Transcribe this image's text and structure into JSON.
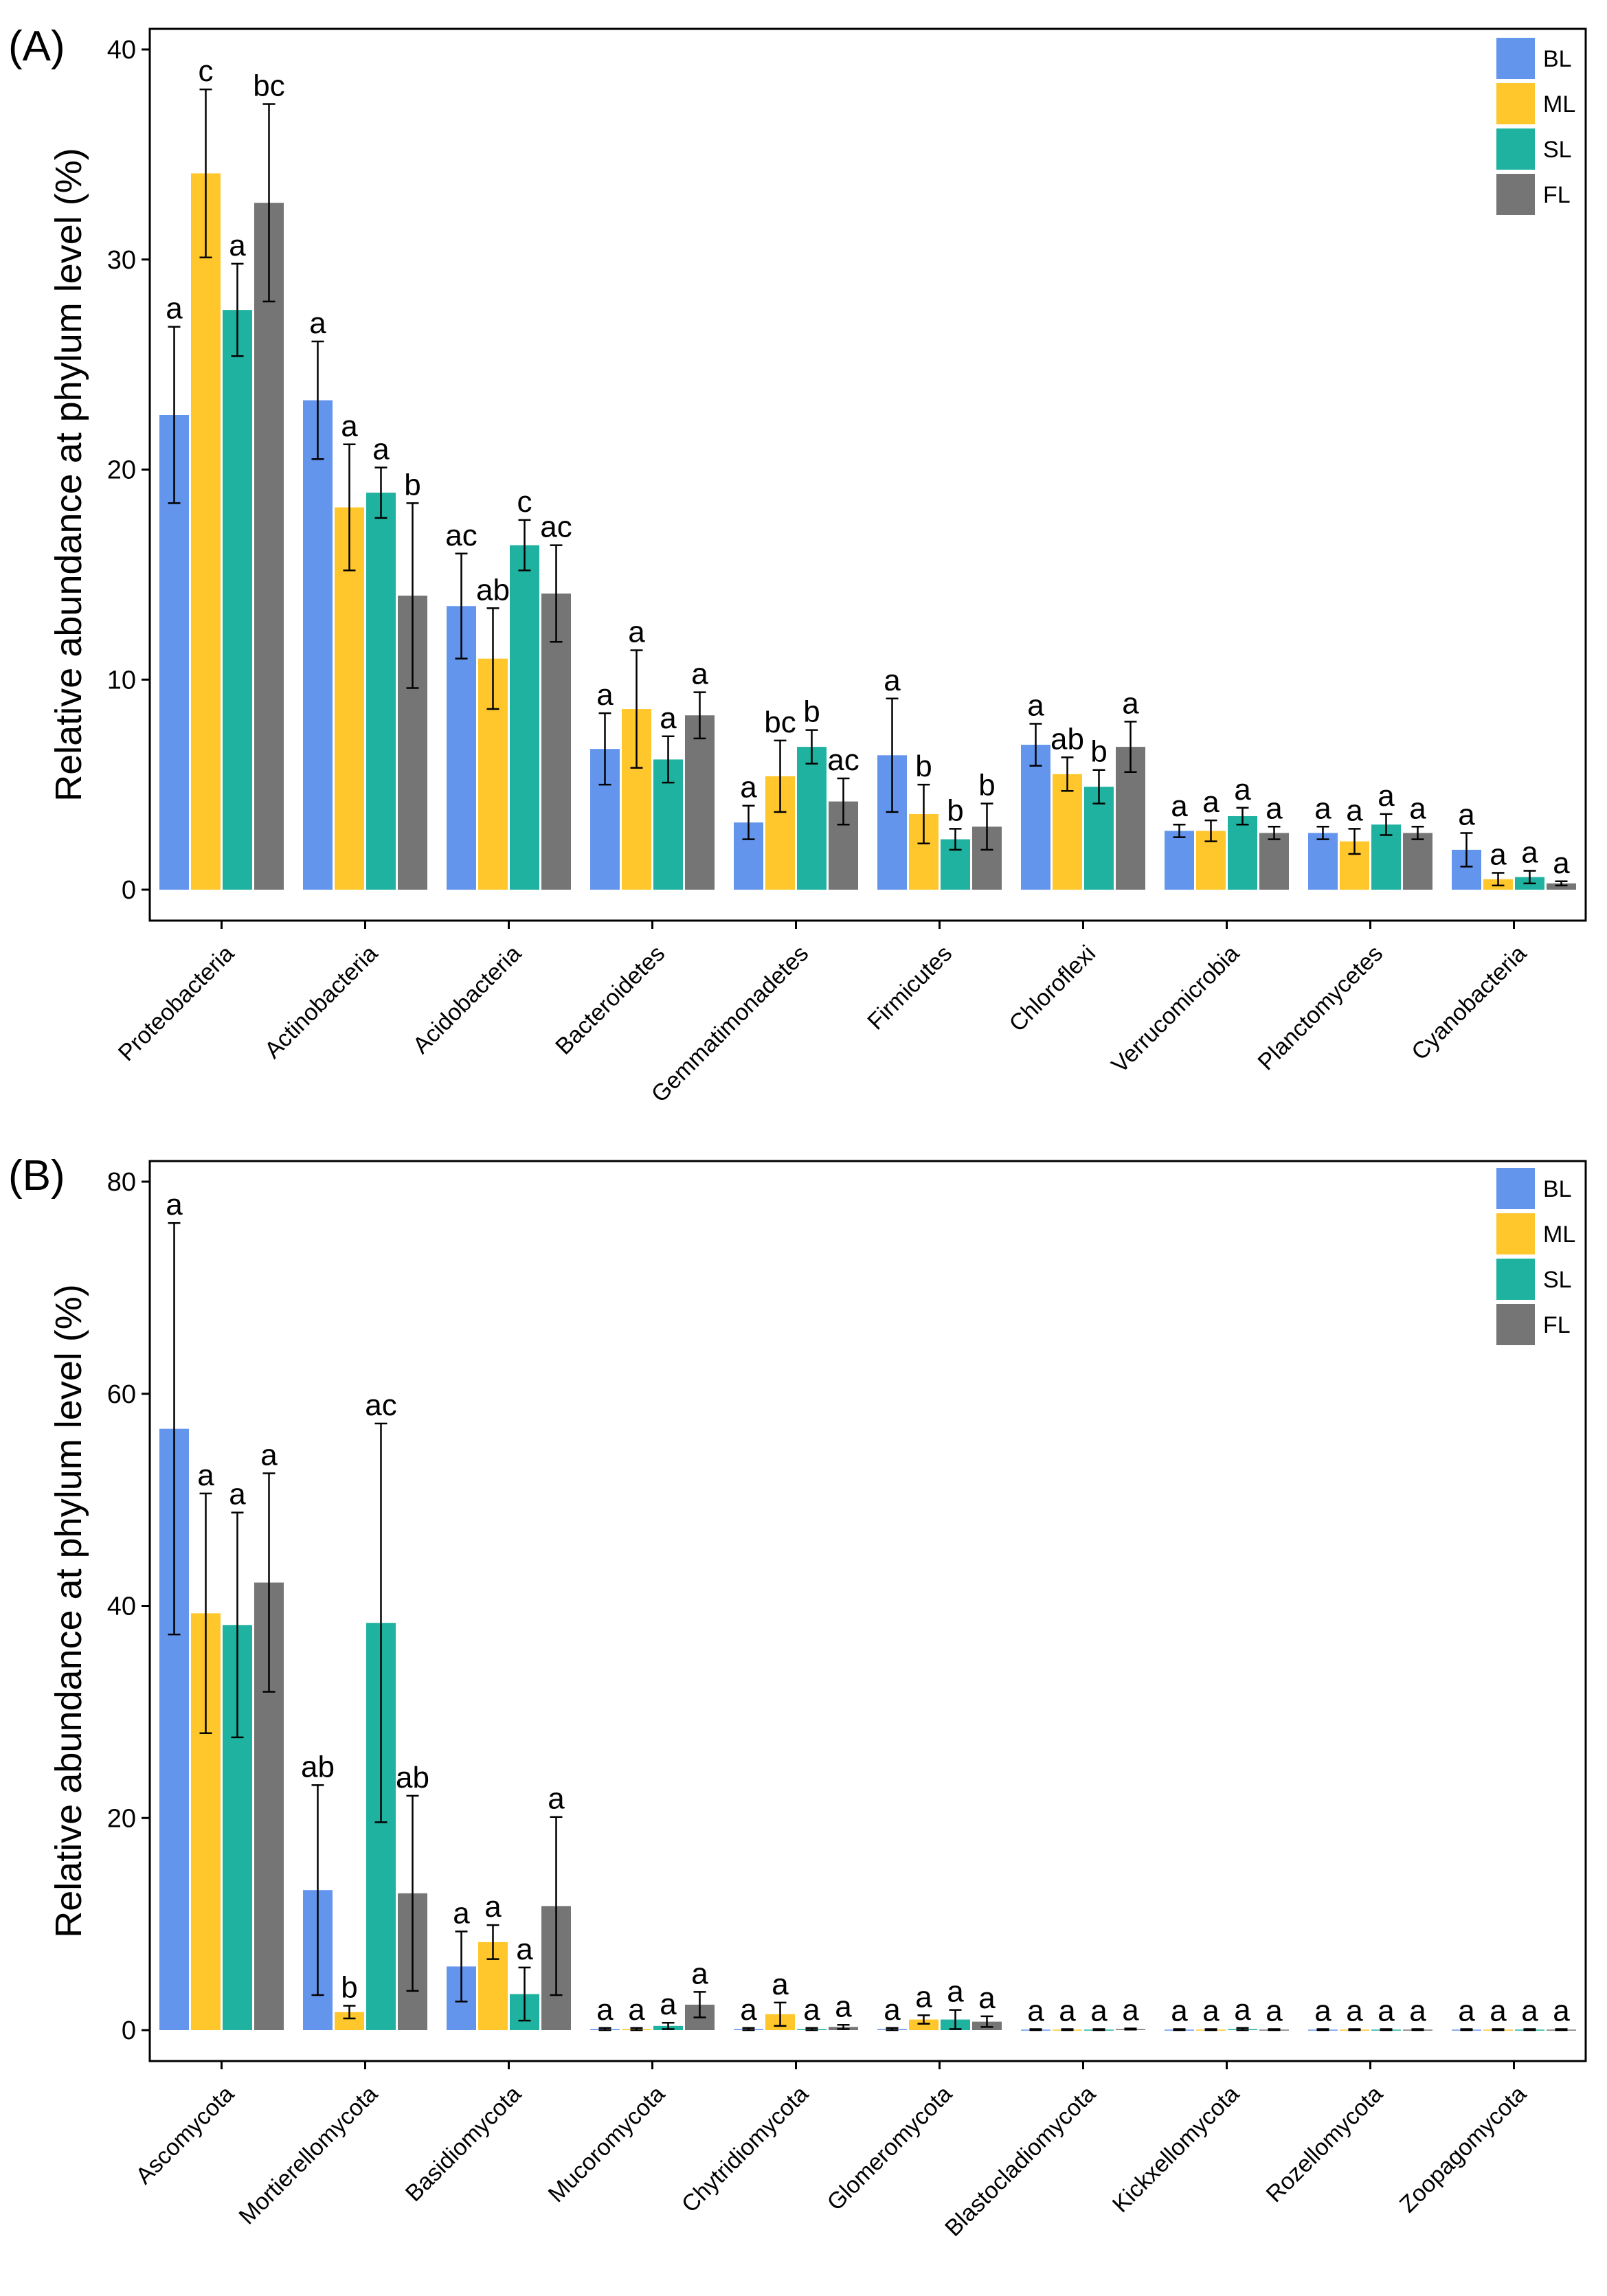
{
  "colors": {
    "BL": "#6495ED",
    "ML": "#FFC72C",
    "SL": "#20B2A0",
    "FL": "#757575"
  },
  "chart_data": [
    {
      "type": "bar",
      "panel_label": "(A)",
      "ylabel": "Relative abundance at phylum level (%)",
      "xlabel": "",
      "ylim": [
        0,
        40
      ],
      "yticks": [
        0,
        10,
        20,
        30,
        40
      ],
      "legend": [
        "BL",
        "ML",
        "SL",
        "FL"
      ],
      "legend_position": "top-right",
      "categories": [
        "Proteobacteria",
        "Actinobacteria",
        "Acidobacteria",
        "Bacteroidetes",
        "Gemmatimonadetes",
        "Firmicutes",
        "Chloroflexi",
        "Verrucomicrobia",
        "Planctomycetes",
        "Cyanobacteria"
      ],
      "series": [
        {
          "name": "BL",
          "values": [
            22.6,
            23.3,
            13.5,
            6.7,
            3.2,
            6.4,
            6.9,
            2.8,
            2.7,
            1.9
          ],
          "errors": [
            4.2,
            2.8,
            2.5,
            1.7,
            0.8,
            2.7,
            1.0,
            0.3,
            0.3,
            0.8
          ],
          "sig": [
            "a",
            "a",
            "ac",
            "a",
            "a",
            "a",
            "a",
            "a",
            "a",
            "a"
          ]
        },
        {
          "name": "ML",
          "values": [
            34.1,
            18.2,
            11.0,
            8.6,
            5.4,
            3.6,
            5.5,
            2.8,
            2.3,
            0.5
          ],
          "errors": [
            4.0,
            3.0,
            2.4,
            2.8,
            1.7,
            1.4,
            0.8,
            0.5,
            0.6,
            0.3
          ],
          "sig": [
            "c",
            "a",
            "ab",
            "a",
            "bc",
            "b",
            "ab",
            "a",
            "a",
            "a"
          ]
        },
        {
          "name": "SL",
          "values": [
            27.6,
            18.9,
            16.4,
            6.2,
            6.8,
            2.4,
            4.9,
            3.5,
            3.1,
            0.6
          ],
          "errors": [
            2.2,
            1.2,
            1.2,
            1.1,
            0.8,
            0.5,
            0.8,
            0.4,
            0.5,
            0.3
          ],
          "sig": [
            "a",
            "a",
            "c",
            "a",
            "b",
            "b",
            "b",
            "a",
            "a",
            "a"
          ]
        },
        {
          "name": "FL",
          "values": [
            32.7,
            14.0,
            14.1,
            8.3,
            4.2,
            3.0,
            6.8,
            2.7,
            2.7,
            0.3
          ],
          "errors": [
            4.7,
            4.4,
            2.3,
            1.1,
            1.1,
            1.1,
            1.2,
            0.3,
            0.3,
            0.1
          ],
          "sig": [
            "bc",
            "b",
            "ac",
            "a",
            "ac",
            "b",
            "a",
            "a",
            "a",
            "a"
          ]
        }
      ]
    },
    {
      "type": "bar",
      "panel_label": "(B)",
      "ylabel": "Relative abundance at phylum level (%)",
      "xlabel": "",
      "ylim": [
        0,
        80
      ],
      "yticks": [
        0,
        20,
        40,
        60,
        80
      ],
      "legend": [
        "BL",
        "ML",
        "SL",
        "FL"
      ],
      "legend_position": "top-right",
      "categories": [
        "Ascomycota",
        "Mortierellomycota",
        "Basidiomycota",
        "Mucoromycota",
        "Chytridiomycota",
        "Glomeromycota",
        "Blastocladiomycota",
        "Kickxellomycota",
        "Rozellomycota",
        "Zoopagomycota"
      ],
      "series": [
        {
          "name": "BL",
          "values": [
            56.7,
            13.2,
            6.0,
            0.1,
            0.1,
            0.1,
            0.05,
            0.05,
            0.05,
            0.05
          ],
          "errors": [
            19.4,
            9.9,
            3.3,
            0.1,
            0.1,
            0.1,
            0.05,
            0.05,
            0.05,
            0.05
          ],
          "sig": [
            "a",
            "ab",
            "a",
            "a",
            "a",
            "a",
            "a",
            "a",
            "a",
            "a"
          ]
        },
        {
          "name": "ML",
          "values": [
            39.3,
            1.7,
            8.3,
            0.1,
            1.5,
            1.0,
            0.05,
            0.05,
            0.05,
            0.05
          ],
          "errors": [
            11.3,
            0.6,
            1.6,
            0.1,
            1.1,
            0.4,
            0.05,
            0.05,
            0.05,
            0.05
          ],
          "sig": [
            "a",
            "b",
            "a",
            "a",
            "a",
            "a",
            "a",
            "a",
            "a",
            "a"
          ]
        },
        {
          "name": "SL",
          "values": [
            38.2,
            38.4,
            3.4,
            0.4,
            0.1,
            1.0,
            0.05,
            0.1,
            0.05,
            0.05
          ],
          "errors": [
            10.6,
            18.8,
            2.5,
            0.3,
            0.1,
            0.9,
            0.05,
            0.1,
            0.05,
            0.05
          ],
          "sig": [
            "a",
            "ac",
            "a",
            "a",
            "a",
            "a",
            "a",
            "a",
            "a",
            "a"
          ]
        },
        {
          "name": "FL",
          "values": [
            42.2,
            12.9,
            11.7,
            2.4,
            0.3,
            0.8,
            0.1,
            0.05,
            0.05,
            0.05
          ],
          "errors": [
            10.3,
            9.2,
            8.4,
            1.2,
            0.2,
            0.5,
            0.05,
            0.05,
            0.05,
            0.05
          ],
          "sig": [
            "a",
            "ab",
            "a",
            "a",
            "a",
            "a",
            "a",
            "a",
            "a",
            "a"
          ]
        }
      ]
    }
  ]
}
